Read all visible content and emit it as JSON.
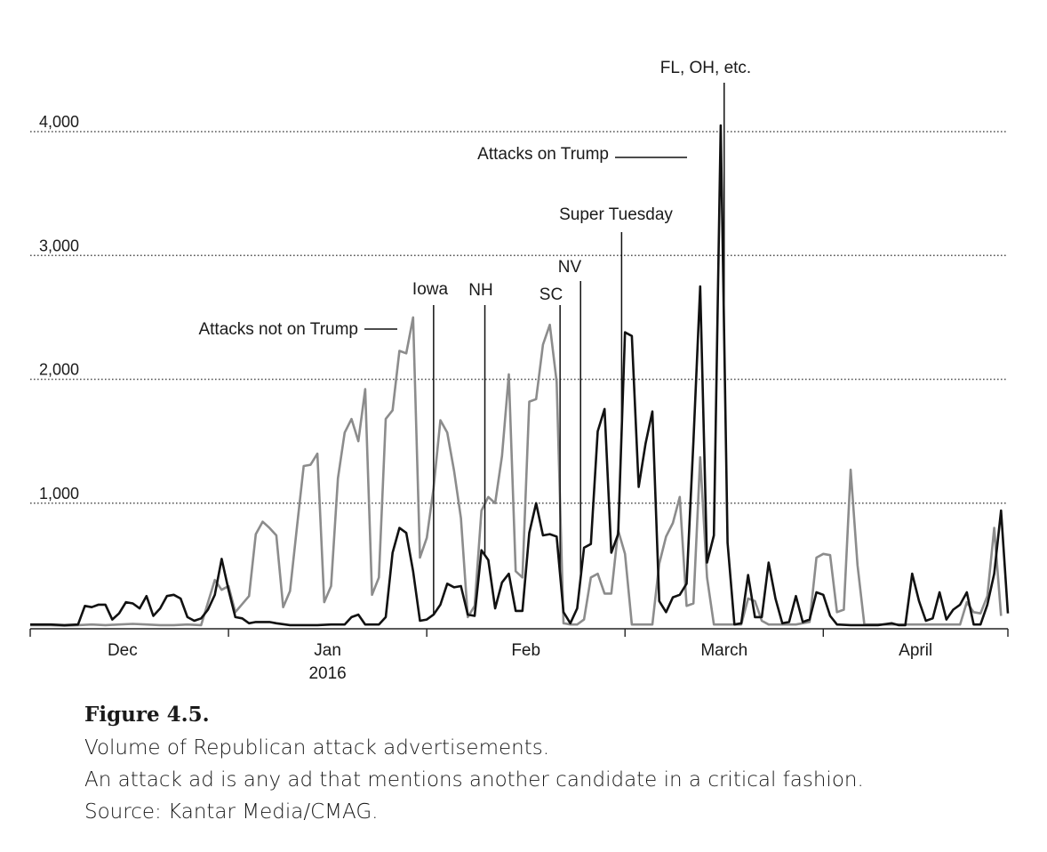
{
  "chart_data": {
    "type": "line",
    "title": "",
    "xlabel": "",
    "ylabel": "",
    "ylim": [
      0,
      4000
    ],
    "yticks": [
      1000,
      2000,
      3000,
      4000
    ],
    "ytick_labels": [
      "1,000",
      "2,000",
      "3,000",
      "4,000"
    ],
    "x_period": "Dec 2015 - Apr 2016 (daily index, day 0 = Dec 1)",
    "xlim": [
      0,
      143
    ],
    "month_ticks": [
      0,
      29,
      58,
      87,
      116,
      143
    ],
    "month_labels": [
      {
        "text": "Dec",
        "day": 13.5
      },
      {
        "text": "Jan",
        "day": 43.5
      },
      {
        "text": "Feb",
        "day": 72.5
      },
      {
        "text": "March",
        "day": 101.5
      },
      {
        "text": "April",
        "day": 129.5
      }
    ],
    "year_label": {
      "text": "2016",
      "day": 43.5
    },
    "grid": "dotted horizontal",
    "series": [
      {
        "name": "Attacks not on Trump",
        "color": "#8c8c8c",
        "points": [
          [
            0,
            15
          ],
          [
            3,
            15
          ],
          [
            5,
            10
          ],
          [
            7,
            15
          ],
          [
            9,
            20
          ],
          [
            11,
            15
          ],
          [
            13,
            20
          ],
          [
            15,
            25
          ],
          [
            17,
            20
          ],
          [
            19,
            15
          ],
          [
            21,
            15
          ],
          [
            23,
            20
          ],
          [
            25,
            15
          ],
          [
            27,
            380
          ],
          [
            28,
            300
          ],
          [
            29,
            330
          ],
          [
            30,
            120
          ],
          [
            32,
            250
          ],
          [
            33,
            750
          ],
          [
            34,
            850
          ],
          [
            35,
            800
          ],
          [
            36,
            740
          ],
          [
            37,
            160
          ],
          [
            38,
            290
          ],
          [
            39,
            800
          ],
          [
            40,
            1300
          ],
          [
            41,
            1310
          ],
          [
            42,
            1400
          ],
          [
            43,
            200
          ],
          [
            44,
            330
          ],
          [
            45,
            1200
          ],
          [
            46,
            1570
          ],
          [
            47,
            1680
          ],
          [
            48,
            1500
          ],
          [
            49,
            1920
          ],
          [
            50,
            260
          ],
          [
            51,
            400
          ],
          [
            52,
            1680
          ],
          [
            53,
            1750
          ],
          [
            54,
            2230
          ],
          [
            55,
            2210
          ],
          [
            56,
            2500
          ],
          [
            57,
            560
          ],
          [
            58,
            720
          ],
          [
            59,
            1120
          ],
          [
            60,
            1670
          ],
          [
            61,
            1570
          ],
          [
            62,
            1260
          ],
          [
            63,
            880
          ],
          [
            64,
            80
          ],
          [
            65,
            170
          ],
          [
            66,
            940
          ],
          [
            67,
            1050
          ],
          [
            68,
            1000
          ],
          [
            69,
            1380
          ],
          [
            70,
            2040
          ],
          [
            71,
            450
          ],
          [
            72,
            400
          ],
          [
            73,
            1820
          ],
          [
            74,
            1840
          ],
          [
            75,
            2280
          ],
          [
            76,
            2440
          ],
          [
            77,
            1980
          ],
          [
            78,
            30
          ],
          [
            79,
            20
          ],
          [
            80,
            20
          ],
          [
            81,
            60
          ],
          [
            82,
            400
          ],
          [
            83,
            430
          ],
          [
            84,
            270
          ],
          [
            85,
            270
          ],
          [
            86,
            780
          ],
          [
            87,
            590
          ],
          [
            88,
            20
          ],
          [
            89,
            20
          ],
          [
            90,
            20
          ],
          [
            91,
            20
          ],
          [
            92,
            510
          ],
          [
            93,
            730
          ],
          [
            94,
            840
          ],
          [
            95,
            1050
          ],
          [
            96,
            170
          ],
          [
            97,
            190
          ],
          [
            98,
            1370
          ],
          [
            99,
            400
          ],
          [
            100,
            20
          ],
          [
            101,
            20
          ],
          [
            102,
            20
          ],
          [
            104,
            20
          ],
          [
            105,
            230
          ],
          [
            106,
            210
          ],
          [
            107,
            50
          ],
          [
            108,
            20
          ],
          [
            110,
            20
          ],
          [
            112,
            20
          ],
          [
            114,
            40
          ],
          [
            115,
            560
          ],
          [
            116,
            590
          ],
          [
            117,
            580
          ],
          [
            118,
            120
          ],
          [
            119,
            140
          ],
          [
            120,
            1270
          ],
          [
            121,
            500
          ],
          [
            122,
            20
          ],
          [
            124,
            20
          ],
          [
            126,
            20
          ],
          [
            128,
            20
          ],
          [
            130,
            20
          ],
          [
            132,
            20
          ],
          [
            134,
            20
          ],
          [
            136,
            20
          ],
          [
            137,
            200
          ],
          [
            138,
            120
          ],
          [
            139,
            110
          ],
          [
            140,
            250
          ],
          [
            141,
            800
          ],
          [
            142,
            90
          ]
        ]
      },
      {
        "name": "Attacks on Trump",
        "color": "#111111",
        "points": [
          [
            0,
            20
          ],
          [
            3,
            20
          ],
          [
            5,
            15
          ],
          [
            7,
            20
          ],
          [
            8,
            170
          ],
          [
            9,
            160
          ],
          [
            10,
            180
          ],
          [
            11,
            180
          ],
          [
            12,
            60
          ],
          [
            13,
            110
          ],
          [
            14,
            200
          ],
          [
            15,
            190
          ],
          [
            16,
            150
          ],
          [
            17,
            250
          ],
          [
            18,
            90
          ],
          [
            19,
            150
          ],
          [
            20,
            250
          ],
          [
            21,
            260
          ],
          [
            22,
            230
          ],
          [
            23,
            80
          ],
          [
            24,
            50
          ],
          [
            25,
            70
          ],
          [
            26,
            140
          ],
          [
            27,
            260
          ],
          [
            28,
            550
          ],
          [
            29,
            300
          ],
          [
            30,
            80
          ],
          [
            31,
            70
          ],
          [
            32,
            30
          ],
          [
            33,
            40
          ],
          [
            34,
            40
          ],
          [
            35,
            40
          ],
          [
            36,
            30
          ],
          [
            38,
            15
          ],
          [
            40,
            15
          ],
          [
            42,
            15
          ],
          [
            44,
            20
          ],
          [
            46,
            20
          ],
          [
            47,
            80
          ],
          [
            48,
            100
          ],
          [
            49,
            20
          ],
          [
            50,
            20
          ],
          [
            51,
            20
          ],
          [
            52,
            80
          ],
          [
            53,
            600
          ],
          [
            54,
            800
          ],
          [
            55,
            760
          ],
          [
            56,
            450
          ],
          [
            57,
            50
          ],
          [
            58,
            60
          ],
          [
            59,
            100
          ],
          [
            60,
            180
          ],
          [
            61,
            350
          ],
          [
            62,
            320
          ],
          [
            63,
            330
          ],
          [
            64,
            100
          ],
          [
            65,
            90
          ],
          [
            66,
            620
          ],
          [
            67,
            540
          ],
          [
            68,
            150
          ],
          [
            69,
            360
          ],
          [
            70,
            430
          ],
          [
            71,
            130
          ],
          [
            72,
            130
          ],
          [
            73,
            760
          ],
          [
            74,
            1000
          ],
          [
            75,
            740
          ],
          [
            76,
            750
          ],
          [
            77,
            730
          ],
          [
            78,
            120
          ],
          [
            79,
            30
          ],
          [
            80,
            150
          ],
          [
            81,
            640
          ],
          [
            82,
            670
          ],
          [
            83,
            1580
          ],
          [
            84,
            1760
          ],
          [
            85,
            600
          ],
          [
            86,
            750
          ],
          [
            87,
            2380
          ],
          [
            88,
            2350
          ],
          [
            89,
            1130
          ],
          [
            90,
            1480
          ],
          [
            91,
            1740
          ],
          [
            92,
            210
          ],
          [
            93,
            120
          ],
          [
            94,
            240
          ],
          [
            95,
            260
          ],
          [
            96,
            350
          ],
          [
            97,
            1500
          ],
          [
            98,
            2750
          ],
          [
            99,
            520
          ],
          [
            100,
            740
          ],
          [
            101,
            4050
          ],
          [
            102,
            680
          ],
          [
            103,
            20
          ],
          [
            104,
            30
          ],
          [
            105,
            420
          ],
          [
            106,
            80
          ],
          [
            107,
            80
          ],
          [
            108,
            520
          ],
          [
            109,
            230
          ],
          [
            110,
            30
          ],
          [
            111,
            40
          ],
          [
            112,
            250
          ],
          [
            113,
            40
          ],
          [
            114,
            60
          ],
          [
            115,
            280
          ],
          [
            116,
            260
          ],
          [
            117,
            90
          ],
          [
            118,
            20
          ],
          [
            120,
            15
          ],
          [
            122,
            15
          ],
          [
            124,
            15
          ],
          [
            126,
            30
          ],
          [
            127,
            15
          ],
          [
            128,
            15
          ],
          [
            129,
            430
          ],
          [
            130,
            210
          ],
          [
            131,
            50
          ],
          [
            132,
            70
          ],
          [
            133,
            280
          ],
          [
            134,
            60
          ],
          [
            135,
            140
          ],
          [
            136,
            180
          ],
          [
            137,
            280
          ],
          [
            138,
            20
          ],
          [
            139,
            20
          ],
          [
            140,
            180
          ],
          [
            141,
            430
          ],
          [
            142,
            940
          ],
          [
            143,
            110
          ]
        ]
      }
    ],
    "annotations": [
      {
        "text": "Attacks not on Trump",
        "target_series": "Attacks not on Trump"
      },
      {
        "text": "Attacks on Trump",
        "target_series": "Attacks on Trump"
      },
      {
        "text": "Iowa",
        "day": 59
      },
      {
        "text": "NH",
        "day": 66.5
      },
      {
        "text": "SC",
        "day": 77.5
      },
      {
        "text": "NV",
        "day": 80.5
      },
      {
        "text": "Super Tuesday",
        "day": 86.5
      },
      {
        "text": "FL, OH, etc.",
        "day": 101.5
      }
    ]
  },
  "caption": {
    "figure_label": "Figure 4.5.",
    "lines": [
      "Volume of Republican attack advertisements.",
      "An attack ad is any ad that mentions another candidate in a critical fashion.",
      "Source: Kantar Media/CMAG."
    ]
  }
}
